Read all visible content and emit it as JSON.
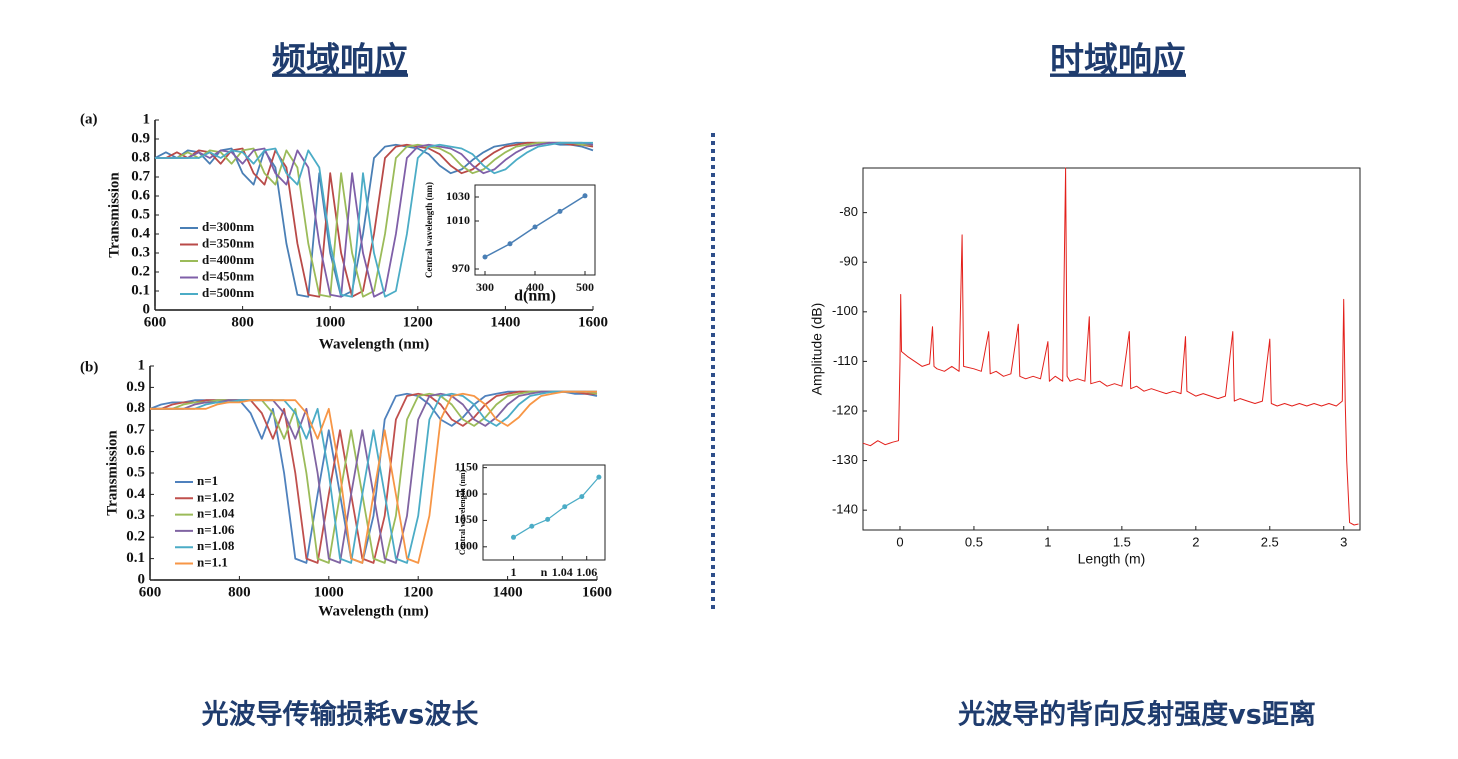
{
  "headings": {
    "left": "频域响应",
    "right": "时域响应"
  },
  "captions": {
    "left": "光波导传输损耗vs波长",
    "right": "光波导的背向反射强度vs距离"
  },
  "chart_data": [
    {
      "type": "line",
      "panel_label": "(a)",
      "xlabel": "Wavelength (nm)",
      "ylabel": "Transmission",
      "x": [
        600,
        625,
        650,
        675,
        700,
        725,
        750,
        775,
        800,
        825,
        850,
        875,
        900,
        925,
        950,
        975,
        1000,
        1025,
        1050,
        1075,
        1100,
        1125,
        1150,
        1175,
        1200,
        1225,
        1250,
        1275,
        1300,
        1325,
        1350,
        1375,
        1400,
        1425,
        1450,
        1475,
        1500,
        1525,
        1550,
        1575,
        1600
      ],
      "xlim": [
        600,
        1600
      ],
      "xticks": [
        600,
        800,
        1000,
        1200,
        1400,
        1600
      ],
      "ylim": [
        0,
        1
      ],
      "yticks": [
        0,
        0.1,
        0.2,
        0.3,
        0.4,
        0.5,
        0.6,
        0.7,
        0.8,
        0.9,
        1
      ],
      "series": [
        {
          "name": "d=300nm",
          "color": "#4a7fb5",
          "values": [
            0.8,
            0.83,
            0.8,
            0.84,
            0.83,
            0.77,
            0.84,
            0.85,
            0.72,
            0.66,
            0.84,
            0.75,
            0.35,
            0.08,
            0.07,
            0.72,
            0.3,
            0.07,
            0.1,
            0.4,
            0.8,
            0.86,
            0.87,
            0.86,
            0.85,
            0.82,
            0.76,
            0.72,
            0.74,
            0.79,
            0.83,
            0.86,
            0.87,
            0.88,
            0.88,
            0.88,
            0.88,
            0.87,
            0.87,
            0.86,
            0.84
          ]
        },
        {
          "name": "d=350nm",
          "color": "#b94a48",
          "values": [
            0.8,
            0.8,
            0.83,
            0.8,
            0.84,
            0.83,
            0.77,
            0.84,
            0.85,
            0.72,
            0.66,
            0.84,
            0.75,
            0.35,
            0.08,
            0.07,
            0.72,
            0.3,
            0.07,
            0.1,
            0.4,
            0.8,
            0.86,
            0.87,
            0.86,
            0.85,
            0.82,
            0.76,
            0.72,
            0.74,
            0.79,
            0.83,
            0.86,
            0.87,
            0.88,
            0.88,
            0.88,
            0.88,
            0.87,
            0.87,
            0.86
          ]
        },
        {
          "name": "d=400nm",
          "color": "#9bbb59",
          "values": [
            0.8,
            0.8,
            0.8,
            0.83,
            0.8,
            0.84,
            0.83,
            0.77,
            0.84,
            0.85,
            0.72,
            0.66,
            0.84,
            0.75,
            0.35,
            0.08,
            0.07,
            0.72,
            0.3,
            0.07,
            0.1,
            0.4,
            0.8,
            0.86,
            0.87,
            0.86,
            0.85,
            0.82,
            0.76,
            0.72,
            0.74,
            0.79,
            0.83,
            0.86,
            0.87,
            0.88,
            0.88,
            0.88,
            0.88,
            0.87,
            0.87
          ]
        },
        {
          "name": "d=450nm",
          "color": "#7f5fa8",
          "values": [
            0.8,
            0.8,
            0.8,
            0.8,
            0.83,
            0.8,
            0.84,
            0.83,
            0.77,
            0.84,
            0.85,
            0.72,
            0.66,
            0.84,
            0.75,
            0.35,
            0.08,
            0.07,
            0.72,
            0.3,
            0.07,
            0.1,
            0.4,
            0.8,
            0.86,
            0.87,
            0.86,
            0.85,
            0.82,
            0.76,
            0.72,
            0.74,
            0.79,
            0.83,
            0.86,
            0.87,
            0.88,
            0.88,
            0.88,
            0.88,
            0.87
          ]
        },
        {
          "name": "d=500nm",
          "color": "#4bacc6",
          "values": [
            0.8,
            0.8,
            0.8,
            0.8,
            0.8,
            0.83,
            0.8,
            0.84,
            0.83,
            0.77,
            0.84,
            0.85,
            0.72,
            0.66,
            0.84,
            0.75,
            0.35,
            0.08,
            0.07,
            0.72,
            0.3,
            0.07,
            0.1,
            0.4,
            0.8,
            0.86,
            0.87,
            0.86,
            0.85,
            0.82,
            0.76,
            0.72,
            0.74,
            0.79,
            0.83,
            0.86,
            0.87,
            0.88,
            0.88,
            0.88,
            0.88
          ]
        }
      ]
    },
    {
      "type": "line",
      "xlabel": "d(nm)",
      "ylabel": "Central wavelength (nm)",
      "x": [
        300,
        350,
        400,
        450,
        500
      ],
      "values": [
        980,
        991,
        1005,
        1018,
        1031
      ],
      "color": "#4a7fb5",
      "markers": true,
      "xlim": [
        280,
        520
      ],
      "xticks": [
        300,
        400,
        500
      ],
      "ylim": [
        965,
        1040
      ],
      "yticks": [
        970,
        1010,
        1030
      ]
    },
    {
      "type": "line",
      "panel_label": "(b)",
      "xlabel": "Wavelength (nm)",
      "ylabel": "Transmission",
      "x": [
        600,
        625,
        650,
        675,
        700,
        725,
        750,
        775,
        800,
        825,
        850,
        875,
        900,
        925,
        950,
        975,
        1000,
        1025,
        1050,
        1075,
        1100,
        1125,
        1150,
        1175,
        1200,
        1225,
        1250,
        1275,
        1300,
        1325,
        1350,
        1375,
        1400,
        1425,
        1450,
        1475,
        1500,
        1525,
        1550,
        1575,
        1600
      ],
      "xlim": [
        600,
        1600
      ],
      "xticks": [
        600,
        800,
        1000,
        1200,
        1400,
        1600
      ],
      "ylim": [
        0,
        1
      ],
      "yticks": [
        0,
        0.1,
        0.2,
        0.3,
        0.4,
        0.5,
        0.6,
        0.7,
        0.8,
        0.9,
        1
      ],
      "series": [
        {
          "name": "n=1",
          "color": "#4f81bd",
          "values": [
            0.8,
            0.82,
            0.83,
            0.83,
            0.84,
            0.84,
            0.84,
            0.84,
            0.84,
            0.78,
            0.66,
            0.8,
            0.5,
            0.1,
            0.08,
            0.4,
            0.7,
            0.4,
            0.1,
            0.08,
            0.3,
            0.75,
            0.86,
            0.87,
            0.86,
            0.82,
            0.75,
            0.72,
            0.76,
            0.82,
            0.86,
            0.87,
            0.88,
            0.88,
            0.88,
            0.88,
            0.88,
            0.88,
            0.87,
            0.87,
            0.86
          ]
        },
        {
          "name": "n=1.02",
          "color": "#c0504d",
          "values": [
            0.8,
            0.8,
            0.82,
            0.83,
            0.83,
            0.84,
            0.84,
            0.84,
            0.84,
            0.84,
            0.78,
            0.66,
            0.8,
            0.5,
            0.1,
            0.08,
            0.4,
            0.7,
            0.4,
            0.1,
            0.08,
            0.3,
            0.75,
            0.86,
            0.87,
            0.86,
            0.82,
            0.75,
            0.72,
            0.76,
            0.82,
            0.86,
            0.87,
            0.88,
            0.88,
            0.88,
            0.88,
            0.88,
            0.88,
            0.87,
            0.87
          ]
        },
        {
          "name": "n=1.04",
          "color": "#9bbb59",
          "values": [
            0.8,
            0.8,
            0.8,
            0.82,
            0.83,
            0.83,
            0.84,
            0.84,
            0.84,
            0.84,
            0.84,
            0.78,
            0.66,
            0.8,
            0.5,
            0.1,
            0.08,
            0.4,
            0.7,
            0.4,
            0.1,
            0.08,
            0.3,
            0.75,
            0.86,
            0.87,
            0.86,
            0.82,
            0.75,
            0.72,
            0.76,
            0.82,
            0.86,
            0.87,
            0.88,
            0.88,
            0.88,
            0.88,
            0.88,
            0.88,
            0.87
          ]
        },
        {
          "name": "n=1.06",
          "color": "#8064a2",
          "values": [
            0.8,
            0.8,
            0.8,
            0.8,
            0.82,
            0.83,
            0.83,
            0.84,
            0.84,
            0.84,
            0.84,
            0.84,
            0.78,
            0.66,
            0.8,
            0.5,
            0.1,
            0.08,
            0.4,
            0.7,
            0.4,
            0.1,
            0.08,
            0.3,
            0.75,
            0.86,
            0.87,
            0.86,
            0.82,
            0.75,
            0.72,
            0.76,
            0.82,
            0.86,
            0.87,
            0.88,
            0.88,
            0.88,
            0.88,
            0.88,
            0.88
          ]
        },
        {
          "name": "n=1.08",
          "color": "#4bacc6",
          "values": [
            0.8,
            0.8,
            0.8,
            0.8,
            0.8,
            0.82,
            0.83,
            0.83,
            0.84,
            0.84,
            0.84,
            0.84,
            0.84,
            0.78,
            0.66,
            0.8,
            0.5,
            0.1,
            0.08,
            0.4,
            0.7,
            0.4,
            0.1,
            0.08,
            0.3,
            0.75,
            0.86,
            0.87,
            0.86,
            0.82,
            0.75,
            0.72,
            0.76,
            0.82,
            0.86,
            0.87,
            0.88,
            0.88,
            0.88,
            0.88,
            0.88
          ]
        },
        {
          "name": "n=1.1",
          "color": "#f79646",
          "values": [
            0.8,
            0.8,
            0.8,
            0.8,
            0.8,
            0.8,
            0.82,
            0.83,
            0.83,
            0.84,
            0.84,
            0.84,
            0.84,
            0.84,
            0.78,
            0.66,
            0.8,
            0.5,
            0.1,
            0.08,
            0.4,
            0.7,
            0.4,
            0.1,
            0.08,
            0.3,
            0.75,
            0.86,
            0.87,
            0.86,
            0.82,
            0.75,
            0.72,
            0.76,
            0.82,
            0.86,
            0.87,
            0.88,
            0.88,
            0.88,
            0.88
          ]
        }
      ]
    },
    {
      "type": "line",
      "xlabel": "n",
      "ylabel": "Central wavelength (nm)",
      "x": [
        1,
        1.015,
        1.028,
        1.042,
        1.056,
        1.07
      ],
      "values": [
        1018,
        1039,
        1052,
        1076,
        1095,
        1132
      ],
      "color": "#4bacc6",
      "markers": true,
      "xlim": [
        0.975,
        1.075
      ],
      "xticks": [
        1,
        1.04,
        1.06
      ],
      "ylim": [
        975,
        1155
      ],
      "yticks": [
        1000,
        1050,
        1100,
        1150
      ]
    },
    {
      "type": "line",
      "xlabel": "Length (m)",
      "ylabel": "Amplitude (dB)",
      "color": "#e3201b",
      "x": [
        -0.25,
        -0.2,
        -0.15,
        -0.1,
        -0.05,
        -0.01,
        0,
        0.005,
        0.01,
        0.05,
        0.1,
        0.15,
        0.2,
        0.22,
        0.23,
        0.25,
        0.3,
        0.35,
        0.4,
        0.42,
        0.43,
        0.5,
        0.55,
        0.6,
        0.61,
        0.65,
        0.7,
        0.75,
        0.8,
        0.81,
        0.85,
        0.9,
        0.95,
        1,
        1.01,
        1.05,
        1.1,
        1.12,
        1.13,
        1.15,
        1.2,
        1.25,
        1.28,
        1.29,
        1.35,
        1.4,
        1.45,
        1.5,
        1.55,
        1.56,
        1.6,
        1.65,
        1.7,
        1.75,
        1.8,
        1.85,
        1.9,
        1.93,
        1.94,
        2,
        2.05,
        2.1,
        2.15,
        2.2,
        2.25,
        2.26,
        2.3,
        2.35,
        2.4,
        2.45,
        2.5,
        2.51,
        2.55,
        2.6,
        2.65,
        2.7,
        2.75,
        2.8,
        2.85,
        2.9,
        2.95,
        2.99,
        3,
        3.01,
        3.02,
        3.04,
        3.07,
        3.1
      ],
      "values": [
        -126.5,
        -127,
        -126,
        -126.8,
        -126.3,
        -126,
        -110,
        -96.5,
        -108,
        -109,
        -110,
        -111,
        -110.5,
        -103,
        -111,
        -111.5,
        -112,
        -111,
        -112,
        -84.5,
        -111,
        -111.5,
        -112,
        -104,
        -112.5,
        -112,
        -113,
        -112.5,
        -102.5,
        -113,
        -113.5,
        -113,
        -113.5,
        -106,
        -114,
        -113,
        -114,
        -71,
        -113,
        -114,
        -113.5,
        -114,
        -101,
        -114.5,
        -114,
        -115,
        -114.5,
        -115,
        -104,
        -115.5,
        -115,
        -116,
        -115.5,
        -116,
        -116.5,
        -116,
        -116.5,
        -105,
        -116,
        -117,
        -116.5,
        -117,
        -117.5,
        -117,
        -104,
        -118,
        -117.5,
        -118,
        -118.5,
        -118,
        -105.5,
        -118.5,
        -119,
        -118.5,
        -119,
        -118.5,
        -119,
        -118.5,
        -119,
        -118.5,
        -119,
        -118,
        -97.5,
        -118,
        -130,
        -142.5,
        -143,
        -142.8
      ],
      "xlim": [
        -0.25,
        3.11
      ],
      "xticks": [
        0,
        0.5,
        1,
        1.5,
        2,
        2.5,
        3
      ],
      "ylim": [
        -144,
        -71
      ],
      "yticks": [
        -140,
        -130,
        -120,
        -110,
        -100,
        -90,
        -80
      ]
    }
  ]
}
